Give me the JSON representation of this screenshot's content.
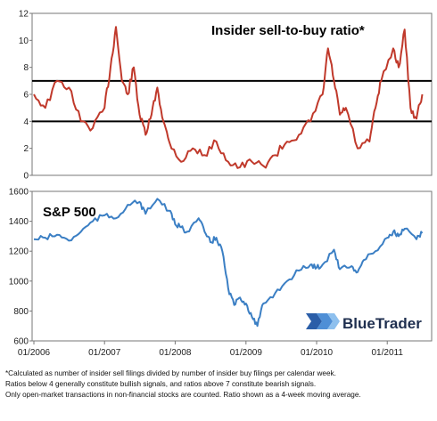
{
  "chart_data": [
    {
      "type": "line",
      "title": "Insider sell-to-buy ratio*",
      "xlabel": "",
      "ylabel": "",
      "ylim": [
        0,
        12
      ],
      "yticks": [
        0,
        2,
        4,
        6,
        8,
        10,
        12
      ],
      "grid": false,
      "reference_lines": [
        4,
        7
      ],
      "color": "#c0392b",
      "series": [
        {
          "x": [
            "2006-01",
            "2006-03",
            "2006-05",
            "2006-07",
            "2006-09",
            "2006-11",
            "2007-01",
            "2007-02",
            "2007-03",
            "2007-04",
            "2007-05",
            "2007-06",
            "2007-07",
            "2007-08",
            "2007-09",
            "2007-10",
            "2007-11",
            "2007-12",
            "2008-02",
            "2008-04",
            "2008-06",
            "2008-08",
            "2008-10",
            "2008-12",
            "2009-02",
            "2009-04",
            "2009-06",
            "2009-08",
            "2009-10",
            "2009-12",
            "2010-02",
            "2010-03",
            "2010-04",
            "2010-05",
            "2010-06",
            "2010-08",
            "2010-10",
            "2010-11",
            "2010-12",
            "2011-02",
            "2011-03",
            "2011-04",
            "2011-05",
            "2011-06",
            "2011-07"
          ],
          "values": [
            6,
            5,
            7,
            6.5,
            4,
            3.5,
            5,
            8,
            11,
            7,
            6,
            8,
            4.5,
            3,
            4.5,
            6.5,
            4,
            2.5,
            1,
            2,
            1.5,
            2.5,
            1,
            0.6,
            1,
            0.7,
            1.5,
            2.5,
            3,
            4,
            6,
            9.4,
            7,
            4.5,
            5,
            2,
            2.5,
            5,
            7,
            9.4,
            8,
            10.8,
            5,
            4.2,
            6
          ]
        }
      ]
    },
    {
      "type": "line",
      "title": "S&P 500",
      "xlabel": "",
      "ylabel": "",
      "ylim": [
        600,
        1600
      ],
      "yticks": [
        600,
        800,
        1000,
        1200,
        1400,
        1600
      ],
      "xticks": [
        "01/2006",
        "01/2007",
        "01/2008",
        "01/2009",
        "01/2010",
        "01/2011"
      ],
      "grid": false,
      "color": "#3b7fc4",
      "series": [
        {
          "x": [
            "2006-01",
            "2006-03",
            "2006-05",
            "2006-07",
            "2006-09",
            "2006-11",
            "2007-01",
            "2007-03",
            "2007-05",
            "2007-07",
            "2007-08",
            "2007-10",
            "2007-12",
            "2008-01",
            "2008-02",
            "2008-03",
            "2008-05",
            "2008-06",
            "2008-07",
            "2008-08",
            "2008-09",
            "2008-10",
            "2008-11",
            "2008-12",
            "2009-01",
            "2009-02",
            "2009-03",
            "2009-04",
            "2009-06",
            "2009-08",
            "2009-10",
            "2009-12",
            "2010-01",
            "2010-02",
            "2010-04",
            "2010-05",
            "2010-07",
            "2010-08",
            "2010-09",
            "2010-11",
            "2011-01",
            "2011-02",
            "2011-03",
            "2011-04",
            "2011-06",
            "2011-07"
          ],
          "values": [
            1280,
            1290,
            1310,
            1270,
            1330,
            1400,
            1440,
            1420,
            1510,
            1530,
            1450,
            1550,
            1470,
            1380,
            1360,
            1330,
            1420,
            1330,
            1260,
            1290,
            1200,
            950,
            840,
            890,
            850,
            760,
            700,
            850,
            920,
            1000,
            1070,
            1110,
            1090,
            1110,
            1210,
            1080,
            1100,
            1060,
            1140,
            1200,
            1290,
            1330,
            1300,
            1350,
            1280,
            1320
          ]
        }
      ]
    }
  ],
  "branding": {
    "name": "BlueTrader"
  },
  "footnote": [
    "*Calculated as number of insider sell filings divided by number of insider buy filings per calendar week.",
    "Ratios below 4 generally constitute bullish signals, and ratios above 7 constitute bearish signals.",
    "Only open-market transactions in non-financial stocks are counted.  Ratio shown as a 4-week moving average."
  ]
}
